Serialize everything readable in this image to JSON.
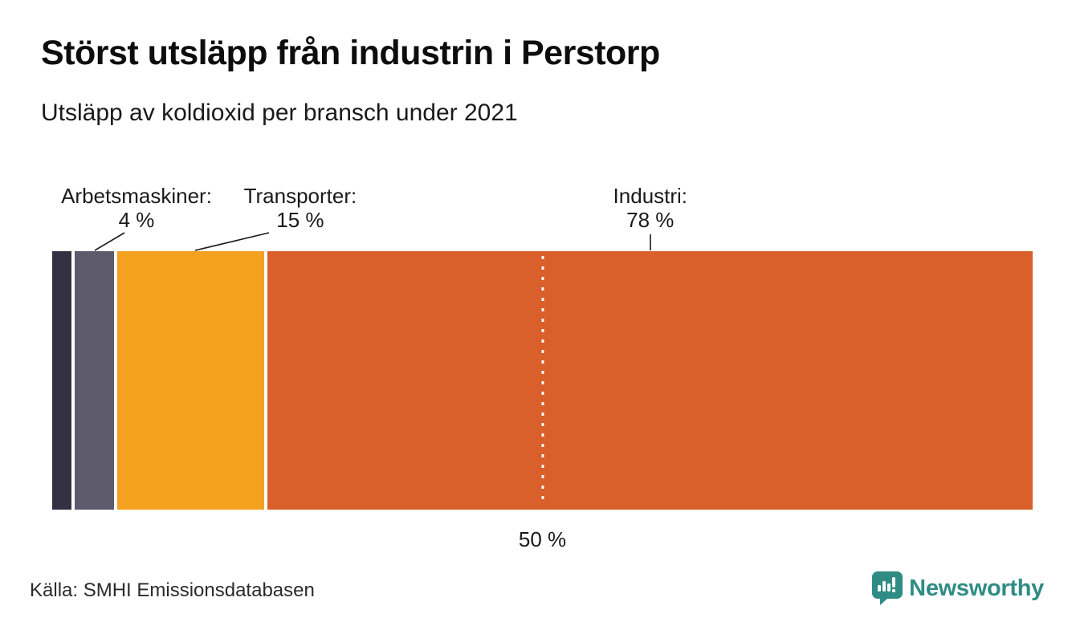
{
  "header": {
    "title": "Störst utsläpp från industrin i Perstorp",
    "subtitle": "Utsläpp av koldioxid per bransch under 2021"
  },
  "chart_data": {
    "type": "bar",
    "variant": "horizontal-stacked-100-percent",
    "unit": "%",
    "categories": [
      "",
      "Arbetsmaskiner",
      "Transporter",
      "Industri"
    ],
    "values": [
      2,
      4,
      15,
      78
    ],
    "colors": [
      "#333044",
      "#5C5A6B",
      "#F5A120",
      "#D95F2B"
    ],
    "xlim": [
      0,
      100
    ],
    "annotations": [
      {
        "label": "Arbetsmaskiner:",
        "value_label": "4 %"
      },
      {
        "label": "Transporter:",
        "value_label": "15 %"
      },
      {
        "label": "Industri:",
        "value_label": "78 %"
      }
    ],
    "reference_line": {
      "position_pct": 50,
      "tick_label": "50 %",
      "style": "white-dotted"
    }
  },
  "footer": {
    "source": "Källa: SMHI Emissionsdatabasen",
    "brand_name": "Newsworthy"
  },
  "brand": {
    "color": "#2F8C84",
    "logo_icon": "newsworthy-speech-bubble-bar-chart-icon"
  }
}
